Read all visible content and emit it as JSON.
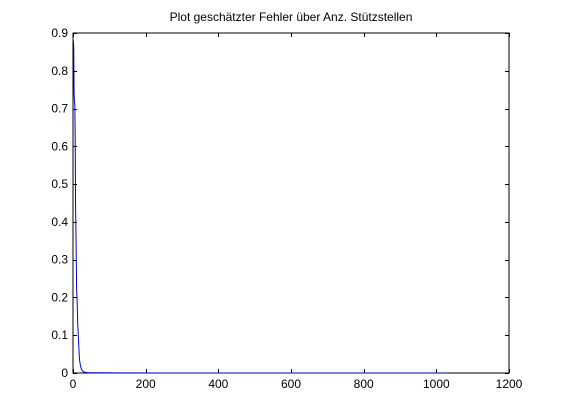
{
  "chart_data": {
    "type": "line",
    "title": "Plot geschätzter Fehler über Anz. Stützstellen",
    "xlabel": "",
    "ylabel": "",
    "xlim": [
      0,
      1200
    ],
    "ylim": [
      0,
      0.9
    ],
    "xticks": [
      0,
      200,
      400,
      600,
      800,
      1000,
      1200
    ],
    "yticks": [
      0,
      0.1,
      0.2,
      0.3,
      0.4,
      0.5,
      0.6,
      0.7,
      0.8,
      0.9
    ],
    "xtick_labels": [
      "0",
      "200",
      "400",
      "600",
      "800",
      "1000",
      "1200"
    ],
    "ytick_labels": [
      "0",
      "0.1",
      "0.2",
      "0.3",
      "0.4",
      "0.5",
      "0.6",
      "0.7",
      "0.8",
      "0.9"
    ],
    "grid": false,
    "legend": "none",
    "series": [
      {
        "color": "#0000c8",
        "x": [
          1,
          2,
          3,
          4,
          5,
          6,
          7,
          8,
          9,
          10,
          11,
          12,
          13,
          14,
          15,
          16,
          17,
          18,
          20,
          22,
          24,
          26,
          28,
          30,
          32,
          40,
          64,
          128,
          256,
          512,
          1024
        ],
        "y": [
          0.88,
          0.86,
          0.74,
          0.72,
          0.71,
          0.62,
          0.45,
          0.38,
          0.3,
          0.22,
          0.2,
          0.17,
          0.13,
          0.11,
          0.09,
          0.07,
          0.05,
          0.035,
          0.022,
          0.014,
          0.009,
          0.006,
          0.004,
          0.003,
          0.002,
          0.001,
          0.0005,
          0.0002,
          0.0001,
          5e-05,
          2e-05
        ]
      }
    ]
  }
}
